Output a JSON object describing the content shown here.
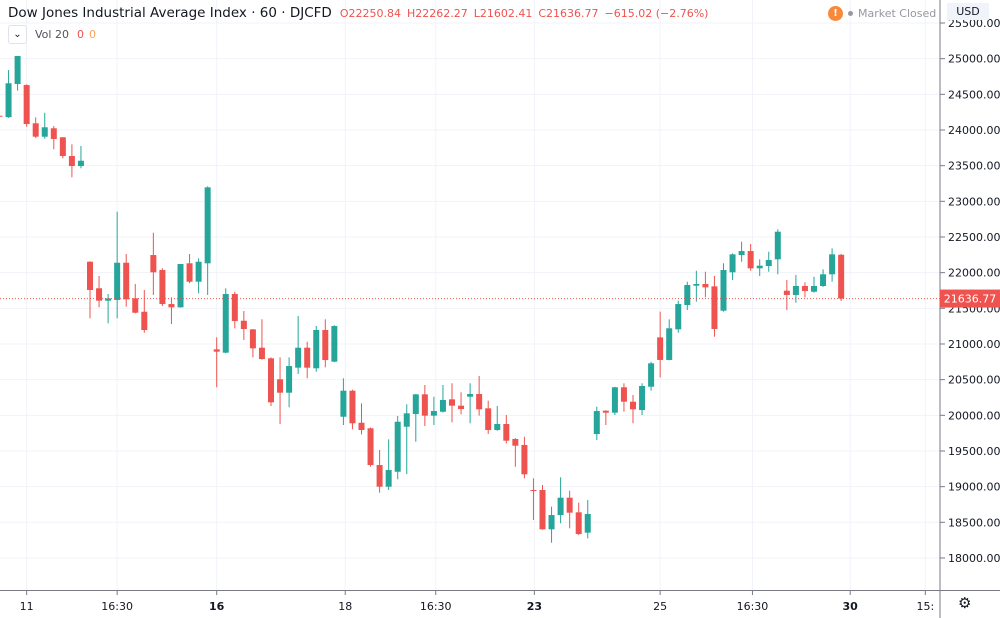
{
  "header": {
    "title": "Dow Jones Industrial Average Index · 60 · DJCFD",
    "open": "O22250.84",
    "high": "H22262.27",
    "low": "L21602.41",
    "close": "C21636.77",
    "change": "−615.02 (−2.76%)",
    "market_status": "Market Closed",
    "market_status_icon": "exclamation-circle-icon",
    "currency": "USD"
  },
  "volume_legend": {
    "label": "Vol 20",
    "value1": "0",
    "value2": "0",
    "collapse_icon": "chevron-down-icon"
  },
  "settings_icon": "gear-icon",
  "colors": {
    "up": "#26a69a",
    "down": "#ef5350",
    "grid": "#f0f3fa",
    "last_price": "#ef5350",
    "market_icon": "#f7893b"
  },
  "chart_data": {
    "type": "candlestick",
    "title": "Dow Jones Industrial Average Index · 60 · DJCFD",
    "interval": "60",
    "ylim": [
      17550,
      25820
    ],
    "y_ticks": [
      "18000.00",
      "18500.00",
      "19000.00",
      "19500.00",
      "20000.00",
      "20500.00",
      "21000.00",
      "21500.00",
      "22000.00",
      "22500.00",
      "23000.00",
      "23500.00",
      "24000.00",
      "24500.00",
      "25000.00",
      "25500.00"
    ],
    "x_ticks": [
      {
        "label": "11",
        "candle_index": 3,
        "bold": false
      },
      {
        "label": "16:30",
        "candle_index": 13,
        "bold": false
      },
      {
        "label": "16",
        "candle_index": 24,
        "bold": true
      },
      {
        "label": "18",
        "candle_index": 38.2,
        "bold": false
      },
      {
        "label": "16:30",
        "candle_index": 48.2,
        "bold": false
      },
      {
        "label": "23",
        "candle_index": 59.1,
        "bold": true
      },
      {
        "label": "25",
        "candle_index": 73,
        "bold": false
      },
      {
        "label": "16:30",
        "candle_index": 83.2,
        "bold": false
      },
      {
        "label": "30",
        "candle_index": 94,
        "bold": true
      },
      {
        "label": "15:",
        "candle_index": 102.3,
        "bold": false
      }
    ],
    "grid": true,
    "last_price": "21636.77",
    "ohlc_fields": [
      "open",
      "high",
      "low",
      "close"
    ],
    "candles": [
      [
        24200,
        24310,
        23930,
        24190
      ],
      [
        24180,
        24840,
        24170,
        24655
      ],
      [
        24645,
        25040,
        24551,
        25037
      ],
      [
        24630,
        24640,
        24046,
        24084
      ],
      [
        24094,
        24178,
        23888,
        23906
      ],
      [
        23906,
        24242,
        23878,
        24038
      ],
      [
        24024,
        24056,
        23729,
        23874
      ],
      [
        23898,
        23900,
        23603,
        23635
      ],
      [
        23635,
        23799,
        23337,
        23495
      ],
      [
        23495,
        23776,
        23463,
        23569
      ],
      [
        22153,
        22160,
        21360,
        21757
      ],
      [
        21781,
        21953,
        21514,
        21607
      ],
      [
        21607,
        21701,
        21290,
        21640
      ],
      [
        21617,
        22854,
        21360,
        22139
      ],
      [
        22139,
        22261,
        21523,
        21626
      ],
      [
        21640,
        21841,
        21430,
        21438
      ],
      [
        21452,
        21757,
        21158,
        21196
      ],
      [
        22247,
        22560,
        21687,
        22005
      ],
      [
        22037,
        22061,
        21532,
        21560
      ],
      [
        21560,
        21654,
        21280,
        21514
      ],
      [
        21514,
        22121,
        21510,
        22121
      ],
      [
        22131,
        22261,
        21851,
        21873
      ],
      [
        21873,
        22201,
        21710,
        22153
      ],
      [
        22131,
        23210,
        21687,
        23196
      ],
      [
        20925,
        21093,
        20393,
        20892
      ],
      [
        20878,
        21781,
        20870,
        21701
      ],
      [
        21701,
        21733,
        21220,
        21322
      ],
      [
        21326,
        21462,
        21056,
        21210
      ],
      [
        21205,
        21210,
        20813,
        20939
      ],
      [
        20948,
        21346,
        20780,
        20789
      ],
      [
        20799,
        20812,
        20130,
        20182
      ],
      [
        20505,
        20813,
        19878,
        20317
      ],
      [
        20317,
        20813,
        20112,
        20691
      ],
      [
        20668,
        21392,
        20579,
        20948
      ],
      [
        20948,
        21032,
        20520,
        20668
      ],
      [
        20659,
        21252,
        20611,
        21196
      ],
      [
        21196,
        21346,
        20673,
        20775
      ],
      [
        20752,
        21262,
        20745,
        21252
      ],
      [
        19980,
        20519,
        19864,
        20345
      ],
      [
        20345,
        20360,
        19804,
        19888
      ],
      [
        19896,
        20168,
        19733,
        19794
      ],
      [
        19818,
        19830,
        19279,
        19303
      ],
      [
        19303,
        19514,
        18915,
        18999
      ],
      [
        18999,
        19663,
        18953,
        19233
      ],
      [
        19209,
        19990,
        19103,
        19910
      ],
      [
        19840,
        20154,
        19177,
        20028
      ],
      [
        20018,
        20300,
        19630,
        20294
      ],
      [
        20294,
        20425,
        19850,
        19995
      ],
      [
        19995,
        20261,
        19864,
        20060
      ],
      [
        20050,
        20425,
        20040,
        20215
      ],
      [
        20224,
        20449,
        19902,
        20135
      ],
      [
        20135,
        20322,
        20014,
        20088
      ],
      [
        20261,
        20449,
        19888,
        20299
      ],
      [
        20299,
        20551,
        19996,
        20084
      ],
      [
        20098,
        20205,
        19738,
        19794
      ],
      [
        19794,
        20130,
        19784,
        19878
      ],
      [
        19878,
        20004,
        19607,
        19644
      ],
      [
        19668,
        19680,
        19279,
        19574
      ],
      [
        19584,
        19700,
        19117,
        19173
      ],
      [
        18953,
        19117,
        18532,
        18939
      ],
      [
        18953,
        19023,
        18395,
        18402
      ],
      [
        18402,
        18719,
        18214,
        18602
      ],
      [
        18602,
        19131,
        18486,
        18845
      ],
      [
        18845,
        18943,
        18416,
        18635
      ],
      [
        18640,
        18775,
        18322,
        18336
      ],
      [
        18355,
        18813,
        18275,
        18616
      ],
      [
        19738,
        20121,
        19654,
        20060
      ],
      [
        20065,
        20070,
        19864,
        20037
      ],
      [
        20037,
        20400,
        20004,
        20393
      ],
      [
        20393,
        20449,
        20051,
        20191
      ],
      [
        20191,
        20285,
        19888,
        20084
      ],
      [
        20074,
        20449,
        20004,
        20411
      ],
      [
        20401,
        20750,
        20345,
        20729
      ],
      [
        21093,
        21453,
        20532,
        20776
      ],
      [
        20776,
        21346,
        20770,
        21220
      ],
      [
        21206,
        21607,
        21158,
        21560
      ],
      [
        21546,
        21873,
        21476,
        21827
      ],
      [
        21817,
        22027,
        21593,
        21841
      ],
      [
        21841,
        22013,
        21654,
        21794
      ],
      [
        21808,
        21953,
        21102,
        21210
      ],
      [
        21467,
        22131,
        21453,
        22037
      ],
      [
        22005,
        22270,
        21897,
        22257
      ],
      [
        22247,
        22434,
        22153,
        22303
      ],
      [
        22303,
        22402,
        22027,
        22061
      ],
      [
        22061,
        22187,
        21953,
        22098
      ],
      [
        22093,
        22294,
        22013,
        22177
      ],
      [
        22187,
        22608,
        21977,
        22574
      ],
      [
        21747,
        21897,
        21476,
        21687
      ],
      [
        21687,
        21967,
        21579,
        21813
      ],
      [
        21813,
        21864,
        21654,
        21743
      ],
      [
        21733,
        21943,
        21720,
        21813
      ],
      [
        21813,
        22047,
        21800,
        21977
      ],
      [
        21977,
        22341,
        21873,
        22257
      ],
      [
        22250.84,
        22262.27,
        21602.41,
        21636.77
      ]
    ]
  }
}
